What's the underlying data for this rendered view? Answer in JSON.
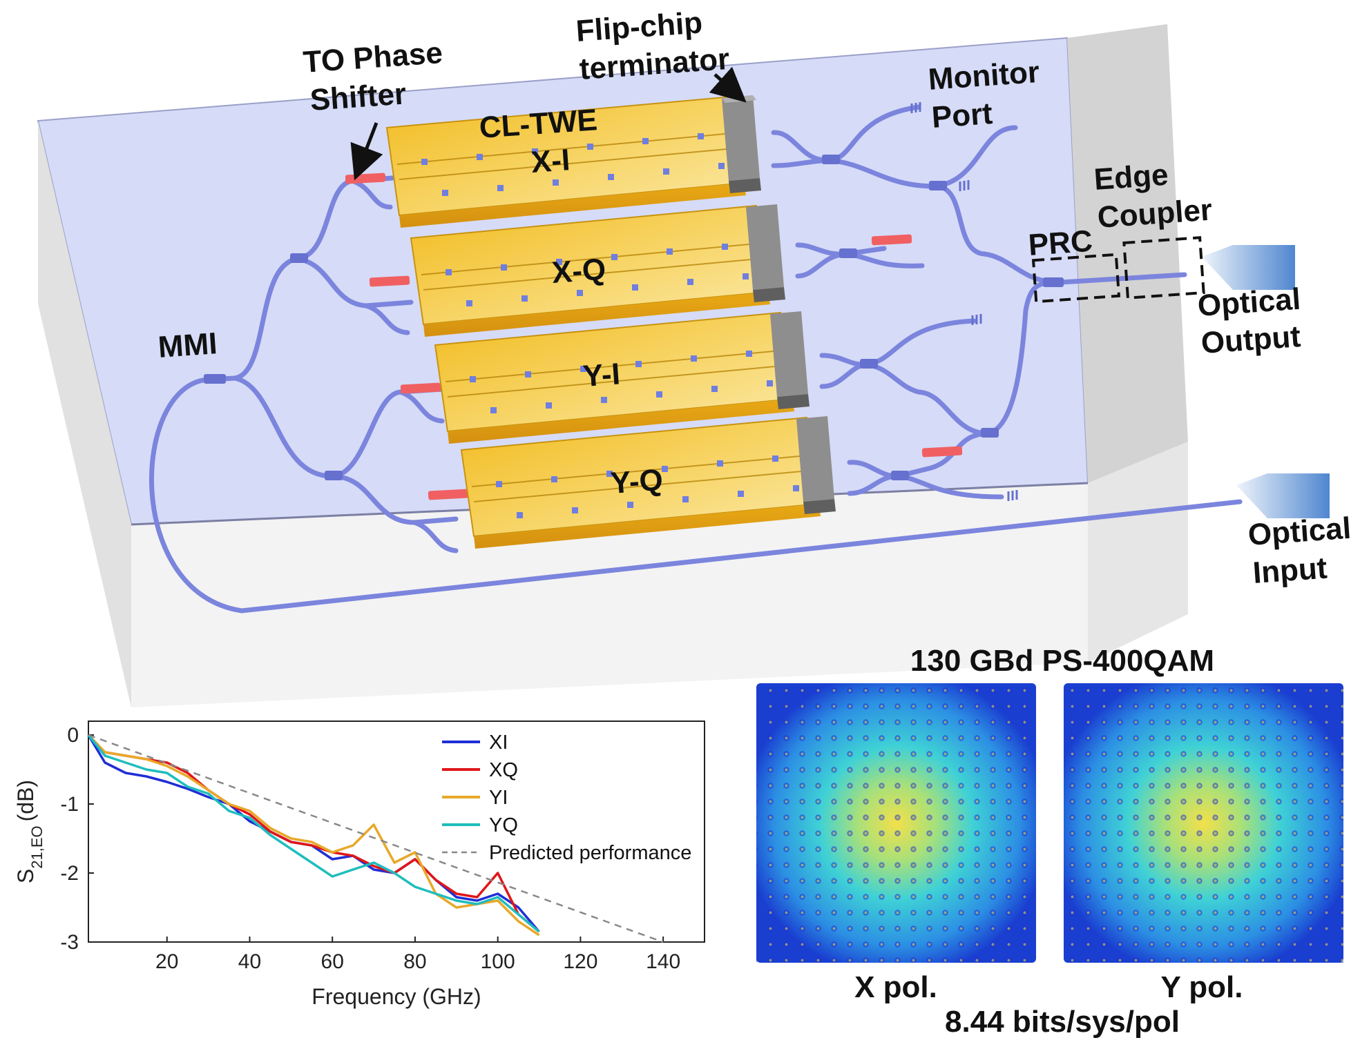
{
  "diagram": {
    "labels": {
      "to_phase_shifter_line1": "TO Phase",
      "to_phase_shifter_line2": "Shifter",
      "flip_chip_line1": "Flip-chip",
      "flip_chip_line2": "terminator",
      "cl_twe": "CL-TWE",
      "monitor_line1": "Monitor",
      "monitor_line2": "Port",
      "edge_coupler_line1": "Edge",
      "edge_coupler_line2": "Coupler",
      "prc": "PRC",
      "mmi": "MMI",
      "optical_output_line1": "Optical",
      "optical_output_line2": "Output",
      "optical_input_line1": "Optical",
      "optical_input_line2": "Input"
    },
    "electrodes": [
      "X-I",
      "X-Q",
      "Y-I",
      "Y-Q"
    ],
    "colors": {
      "chip": "#d6dbf7",
      "waveguide": "#7b85dd",
      "electrode": "#f1c232",
      "terminator": "#8a8a8a",
      "phase_shifter": "#f06062"
    }
  },
  "constellation": {
    "title": "130 GBd PS-400QAM",
    "x_label": "X pol.",
    "y_label": "Y pol.",
    "footer": "8.44 bits/sys/pol"
  },
  "chart_data": {
    "type": "line",
    "xlabel": "Frequency (GHz)",
    "ylabel_main": "S",
    "ylabel_sub": "21,EO",
    "ylabel_unit": "(dB)",
    "xlim": [
      1,
      150
    ],
    "ylim": [
      -3,
      0.2
    ],
    "xticks": [
      20,
      40,
      60,
      80,
      100,
      120,
      140
    ],
    "yticks": [
      0,
      -1,
      -2,
      -3
    ],
    "legend_position": "top-right",
    "series": [
      {
        "name": "XI",
        "color": "#1f2ed6",
        "x": [
          1,
          5,
          10,
          15,
          20,
          25,
          30,
          35,
          40,
          45,
          50,
          55,
          60,
          65,
          70,
          75,
          80,
          85,
          90,
          95,
          100,
          105,
          110
        ],
        "y": [
          0,
          -0.4,
          -0.55,
          -0.6,
          -0.68,
          -0.78,
          -0.9,
          -1.0,
          -1.25,
          -1.4,
          -1.55,
          -1.6,
          -1.8,
          -1.75,
          -1.95,
          -2.0,
          -1.8,
          -2.1,
          -2.35,
          -2.4,
          -2.3,
          -2.5,
          -2.85
        ]
      },
      {
        "name": "XQ",
        "color": "#e0161a",
        "x": [
          1,
          5,
          10,
          15,
          20,
          25,
          30,
          35,
          40,
          45,
          50,
          55,
          60,
          65,
          70,
          75,
          80,
          85,
          90,
          95,
          100,
          105,
          110
        ],
        "y": [
          0,
          -0.25,
          -0.3,
          -0.35,
          -0.4,
          -0.55,
          -0.8,
          -1.0,
          -1.15,
          -1.4,
          -1.55,
          -1.6,
          -1.7,
          -1.75,
          -1.9,
          -2.0,
          -1.8,
          -2.1,
          -2.3,
          -2.35,
          -2.0,
          -2.6,
          -2.85
        ]
      },
      {
        "name": "YI",
        "color": "#e8a82a",
        "x": [
          1,
          5,
          10,
          15,
          20,
          25,
          30,
          35,
          40,
          45,
          50,
          55,
          60,
          65,
          70,
          75,
          80,
          85,
          90,
          95,
          100,
          105,
          110
        ],
        "y": [
          0,
          -0.25,
          -0.3,
          -0.35,
          -0.45,
          -0.6,
          -0.8,
          -1.0,
          -1.1,
          -1.35,
          -1.5,
          -1.55,
          -1.7,
          -1.6,
          -1.3,
          -1.85,
          -1.7,
          -2.3,
          -2.5,
          -2.45,
          -2.4,
          -2.7,
          -2.9
        ]
      },
      {
        "name": "YQ",
        "color": "#1fbdbd",
        "x": [
          1,
          5,
          10,
          15,
          20,
          25,
          30,
          35,
          40,
          45,
          50,
          55,
          60,
          65,
          70,
          75,
          80,
          85,
          90,
          95,
          100,
          105,
          110
        ],
        "y": [
          0,
          -0.3,
          -0.4,
          -0.5,
          -0.55,
          -0.75,
          -0.85,
          -1.1,
          -1.2,
          -1.45,
          -1.65,
          -1.85,
          -2.05,
          -1.95,
          -1.85,
          -2.0,
          -2.2,
          -2.3,
          -2.4,
          -2.45,
          -2.35,
          -2.6,
          -2.85
        ]
      },
      {
        "name": "Predicted performance",
        "color": "#888888",
        "dashed": true,
        "x": [
          1,
          140
        ],
        "y": [
          0,
          -3.0
        ]
      }
    ]
  }
}
